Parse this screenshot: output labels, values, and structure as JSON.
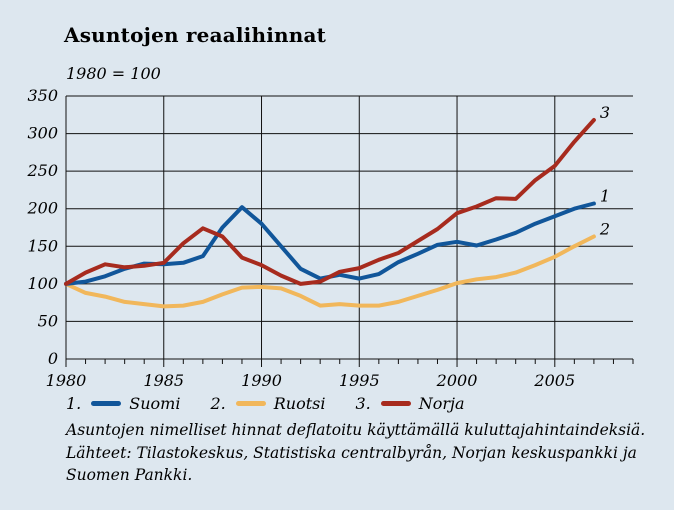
{
  "title": "Asuntojen reaalihinnat",
  "subtitle": "1980 = 100",
  "chart_data": {
    "type": "line",
    "title": "Asuntojen reaalihinnat",
    "subtitle": "1980 = 100",
    "xlim": [
      1980,
      2009
    ],
    "ylim": [
      0,
      350
    ],
    "x_ticks": [
      1980,
      1985,
      1990,
      1995,
      2000,
      2005
    ],
    "y_ticks": [
      0,
      50,
      100,
      150,
      200,
      250,
      300,
      350
    ],
    "grid": true,
    "legend_position": "bottom",
    "series": [
      {
        "id": "1",
        "name": "Suomi",
        "color": "#11569a",
        "x": [
          1980,
          1981,
          1982,
          1983,
          1984,
          1985,
          1986,
          1987,
          1988,
          1989,
          1990,
          1991,
          1992,
          1993,
          1994,
          1995,
          1996,
          1997,
          1998,
          1999,
          2000,
          2001,
          2002,
          2003,
          2004,
          2005,
          2006,
          2007
        ],
        "values": [
          100,
          103,
          110,
          120,
          127,
          126,
          128,
          137,
          175,
          202,
          180,
          150,
          120,
          107,
          112,
          107,
          113,
          129,
          140,
          152,
          156,
          151,
          159,
          168,
          180,
          190,
          200,
          207
        ]
      },
      {
        "id": "2",
        "name": "Ruotsi",
        "color": "#f1b75b",
        "x": [
          1980,
          1981,
          1982,
          1983,
          1984,
          1985,
          1986,
          1987,
          1988,
          1989,
          1990,
          1991,
          1992,
          1993,
          1994,
          1995,
          1996,
          1997,
          1998,
          1999,
          2000,
          2001,
          2002,
          2003,
          2004,
          2005,
          2006,
          2007
        ],
        "values": [
          100,
          88,
          83,
          76,
          73,
          70,
          71,
          76,
          86,
          95,
          96,
          94,
          84,
          71,
          73,
          71,
          71,
          76,
          84,
          92,
          101,
          106,
          109,
          115,
          125,
          136,
          150,
          163
        ]
      },
      {
        "id": "3",
        "name": "Norja",
        "color": "#a72b1e",
        "x": [
          1980,
          1981,
          1982,
          1983,
          1984,
          1985,
          1986,
          1987,
          1988,
          1989,
          1990,
          1991,
          1992,
          1993,
          1994,
          1995,
          1996,
          1997,
          1998,
          1999,
          2000,
          2001,
          2002,
          2003,
          2004,
          2005,
          2006,
          2007
        ],
        "values": [
          100,
          115,
          126,
          122,
          124,
          128,
          154,
          174,
          163,
          135,
          125,
          111,
          100,
          103,
          116,
          121,
          132,
          141,
          157,
          173,
          194,
          203,
          214,
          213,
          238,
          257,
          289,
          318
        ]
      }
    ]
  },
  "legend": [
    {
      "num": "1.",
      "name": "Suomi",
      "color": "#11569a"
    },
    {
      "num": "2.",
      "name": "Ruotsi",
      "color": "#f1b75b"
    },
    {
      "num": "3.",
      "name": "Norja",
      "color": "#a72b1e"
    }
  ],
  "notes": [
    "Asuntojen nimelliset hinnat deflatoitu käyttämällä kuluttajahintaindeksiä.",
    "Lähteet: Tilastokeskus, Statistiska centralbyrån, Norjan keskuspankki ja",
    "Suomen Pankki."
  ]
}
